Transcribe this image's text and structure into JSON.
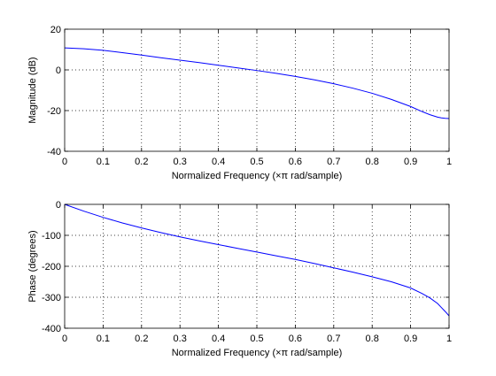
{
  "chart_data": [
    {
      "type": "line",
      "xlabel": "Normalized Frequency  (×π rad/sample)",
      "ylabel": "Magnitude (dB)",
      "xlim": [
        0,
        1
      ],
      "ylim": [
        -40,
        20
      ],
      "xticks": [
        "0",
        "0.1",
        "0.2",
        "0.3",
        "0.4",
        "0.5",
        "0.6",
        "0.7",
        "0.8",
        "0.9",
        "1"
      ],
      "yticks": [
        "-40",
        "-20",
        "0",
        "20"
      ],
      "grid": "dotted",
      "line_color": "#0000ff",
      "series": [
        {
          "x": [
            0,
            0.05,
            0.1,
            0.15,
            0.2,
            0.25,
            0.3,
            0.35,
            0.4,
            0.45,
            0.5,
            0.55,
            0.6,
            0.65,
            0.7,
            0.75,
            0.8,
            0.85,
            0.9,
            0.93,
            0.95,
            0.97,
            0.98,
            0.99,
            1.0
          ],
          "y": [
            10.8,
            10.4,
            9.6,
            8.5,
            7.3,
            6.0,
            4.8,
            3.6,
            2.3,
            1.0,
            -0.3,
            -1.7,
            -3.2,
            -4.9,
            -6.8,
            -9.0,
            -11.5,
            -14.5,
            -18.0,
            -20.5,
            -22.0,
            -23.2,
            -23.6,
            -23.8,
            -23.9
          ]
        }
      ]
    },
    {
      "type": "line",
      "xlabel": "Normalized Frequency  (×π rad/sample)",
      "ylabel": "Phase (degrees)",
      "xlim": [
        0,
        1
      ],
      "ylim": [
        -400,
        0
      ],
      "xticks": [
        "0",
        "0.1",
        "0.2",
        "0.3",
        "0.4",
        "0.5",
        "0.6",
        "0.7",
        "0.8",
        "0.9",
        "1"
      ],
      "yticks": [
        "-400",
        "-300",
        "-200",
        "-100",
        "0"
      ],
      "grid": "dotted",
      "line_color": "#0000ff",
      "series": [
        {
          "x": [
            0,
            0.05,
            0.1,
            0.15,
            0.2,
            0.25,
            0.3,
            0.35,
            0.4,
            0.45,
            0.5,
            0.55,
            0.6,
            0.65,
            0.7,
            0.75,
            0.8,
            0.85,
            0.9,
            0.93,
            0.95,
            0.97,
            0.98,
            0.99,
            1.0
          ],
          "y": [
            0,
            -22,
            -42,
            -60,
            -76,
            -91,
            -105,
            -118,
            -130,
            -142,
            -154,
            -166,
            -178,
            -191,
            -205,
            -219,
            -234,
            -250,
            -270,
            -288,
            -302,
            -320,
            -333,
            -346,
            -360
          ]
        }
      ]
    }
  ]
}
